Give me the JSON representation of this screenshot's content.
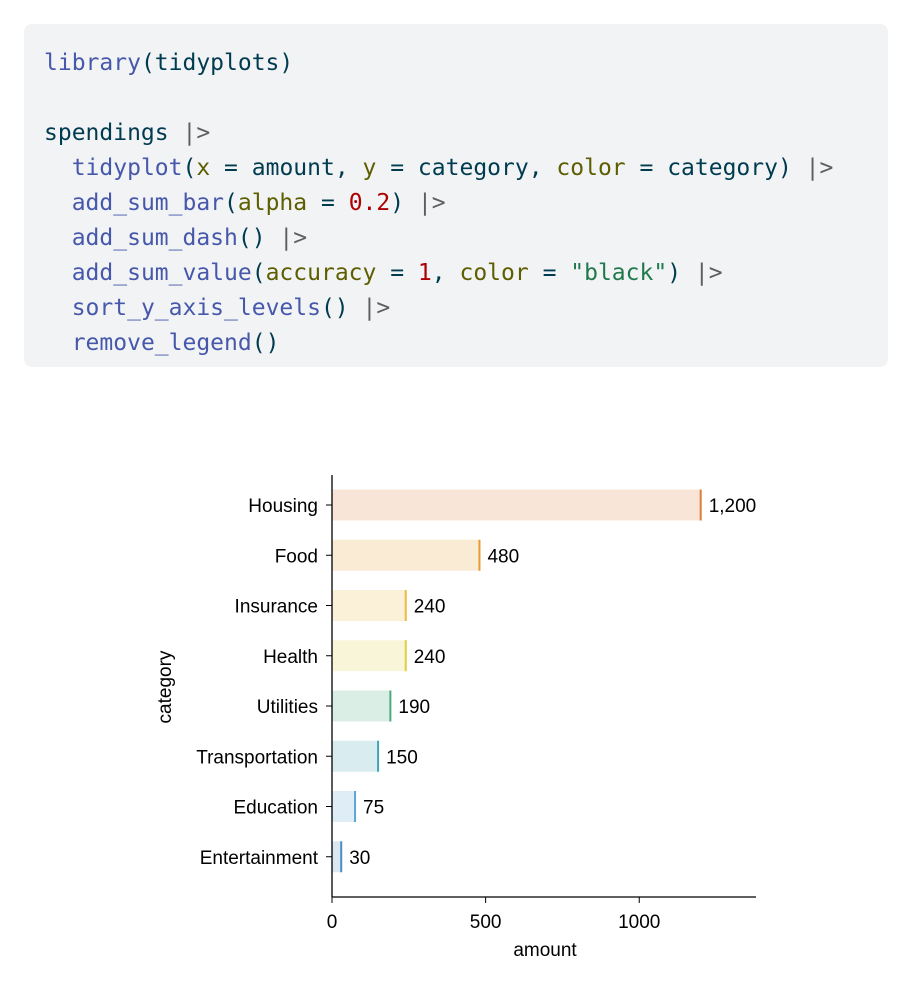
{
  "code": {
    "lines": [
      [
        {
          "t": "library",
          "c": "fn"
        },
        {
          "t": "(tidyplots)",
          "c": ""
        }
      ],
      [],
      [
        {
          "t": "spendings ",
          "c": ""
        },
        {
          "t": "|>",
          "c": "op"
        }
      ],
      [
        {
          "t": "  ",
          "c": ""
        },
        {
          "t": "tidyplot",
          "c": "fn"
        },
        {
          "t": "(",
          "c": ""
        },
        {
          "t": "x",
          "c": "arg"
        },
        {
          "t": " = amount, ",
          "c": ""
        },
        {
          "t": "y",
          "c": "arg"
        },
        {
          "t": " = category, ",
          "c": ""
        },
        {
          "t": "color",
          "c": "arg"
        },
        {
          "t": " = category) ",
          "c": ""
        },
        {
          "t": "|>",
          "c": "op"
        }
      ],
      [
        {
          "t": "  ",
          "c": ""
        },
        {
          "t": "add_sum_bar",
          "c": "fn"
        },
        {
          "t": "(",
          "c": ""
        },
        {
          "t": "alpha",
          "c": "arg"
        },
        {
          "t": " = ",
          "c": ""
        },
        {
          "t": "0.2",
          "c": "num"
        },
        {
          "t": ") ",
          "c": ""
        },
        {
          "t": "|>",
          "c": "op"
        }
      ],
      [
        {
          "t": "  ",
          "c": ""
        },
        {
          "t": "add_sum_dash",
          "c": "fn"
        },
        {
          "t": "() ",
          "c": ""
        },
        {
          "t": "|>",
          "c": "op"
        }
      ],
      [
        {
          "t": "  ",
          "c": ""
        },
        {
          "t": "add_sum_value",
          "c": "fn"
        },
        {
          "t": "(",
          "c": ""
        },
        {
          "t": "accuracy",
          "c": "arg"
        },
        {
          "t": " = ",
          "c": ""
        },
        {
          "t": "1",
          "c": "num"
        },
        {
          "t": ", ",
          "c": ""
        },
        {
          "t": "color",
          "c": "arg"
        },
        {
          "t": " = ",
          "c": ""
        },
        {
          "t": "\"black\"",
          "c": "str"
        },
        {
          "t": ") ",
          "c": ""
        },
        {
          "t": "|>",
          "c": "op"
        }
      ],
      [
        {
          "t": "  ",
          "c": ""
        },
        {
          "t": "sort_y_axis_levels",
          "c": "fn"
        },
        {
          "t": "() ",
          "c": ""
        },
        {
          "t": "|>",
          "c": "op"
        }
      ],
      [
        {
          "t": "  ",
          "c": ""
        },
        {
          "t": "remove_legend",
          "c": "fn"
        },
        {
          "t": "()",
          "c": ""
        }
      ]
    ]
  },
  "chart_data": {
    "type": "bar",
    "orientation": "horizontal",
    "categories": [
      "Housing",
      "Food",
      "Insurance",
      "Health",
      "Utilities",
      "Transportation",
      "Education",
      "Entertainment"
    ],
    "values": [
      1200,
      480,
      240,
      240,
      190,
      150,
      75,
      30
    ],
    "value_labels": [
      "1,200",
      "480",
      "240",
      "240",
      "190",
      "150",
      "75",
      "30"
    ],
    "colors": [
      "#E07B39",
      "#E69B2E",
      "#EDBA3C",
      "#E1CD3E",
      "#4DAA7C",
      "#3FA5B5",
      "#5BA7D0",
      "#4B8EC1"
    ],
    "bar_alpha": 0.2,
    "xlabel": "amount",
    "ylabel": "category",
    "xlim": [
      0,
      1380
    ],
    "xticks": [
      0,
      500,
      1000
    ],
    "xtick_labels": [
      "0",
      "500",
      "1000"
    ],
    "grid": false,
    "legend": "none"
  }
}
